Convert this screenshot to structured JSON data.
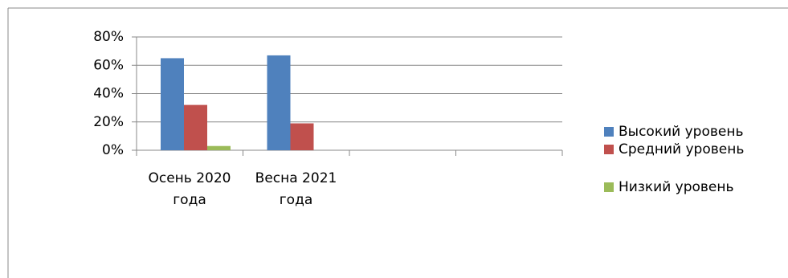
{
  "chart_data": {
    "type": "bar",
    "categories": [
      "Осень 2020 года",
      "Весна 2021 года",
      null,
      null
    ],
    "series": [
      {
        "name": "Высокий уровень",
        "color": "#4f81bd",
        "values": [
          65,
          67,
          null,
          null
        ]
      },
      {
        "name": "Средний уровень",
        "color": "#c0504d",
        "values": [
          32,
          19,
          null,
          null
        ]
      },
      {
        "name": "Низкий уровень",
        "color": "#9bbb59",
        "values": [
          3,
          0,
          null,
          null
        ]
      }
    ],
    "ylim": [
      0,
      80
    ],
    "yticks": [
      {
        "value": 0,
        "label": "0%"
      },
      {
        "value": 20,
        "label": "20%"
      },
      {
        "value": 40,
        "label": "40%"
      },
      {
        "value": 60,
        "label": "60%"
      },
      {
        "value": 80,
        "label": "80%"
      }
    ],
    "grid": true,
    "legend": "right"
  }
}
